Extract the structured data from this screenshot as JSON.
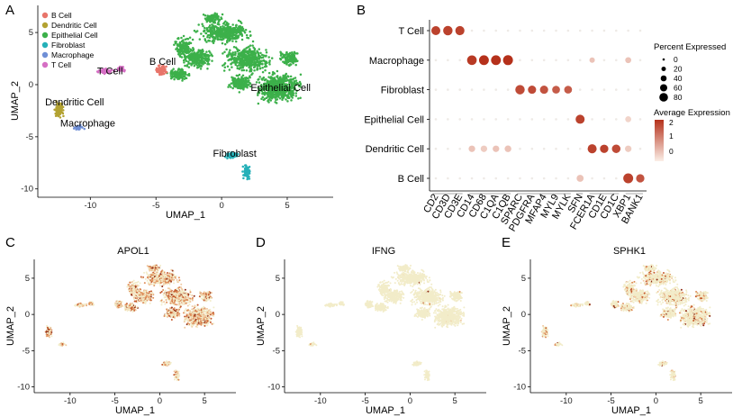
{
  "panels": {
    "A": {
      "letter": "A",
      "chart_id": "umap-clusters",
      "xlabel": "UMAP_1",
      "ylabel": "UMAP_2",
      "xlim": [
        -14,
        8.5
      ],
      "ylim": [
        -10.8,
        7.6
      ],
      "xticks": [
        -10,
        -5,
        0,
        5
      ],
      "yticks": [
        5,
        0,
        -5,
        -10
      ],
      "legend": [
        {
          "label": "B Cell",
          "color": "#e8756a"
        },
        {
          "label": "Dendritic Cell",
          "color": "#b3a232"
        },
        {
          "label": "Epithelial Cell",
          "color": "#3cb04a"
        },
        {
          "label": "Fibroblast",
          "color": "#25b0b8"
        },
        {
          "label": "Macrophage",
          "color": "#6f8fd6"
        },
        {
          "label": "T Cell",
          "color": "#d56fc4"
        }
      ],
      "cluster_labels": [
        {
          "text": "B Cell",
          "x": -4.5,
          "y": 1.9
        },
        {
          "text": "T Cell",
          "x": -8.5,
          "y": 1.0
        },
        {
          "text": "Epithelial Cell",
          "x": 4.5,
          "y": -0.6
        },
        {
          "text": "Dendritic Cell",
          "x": -11.2,
          "y": -2.0
        },
        {
          "text": "Macrophage",
          "x": -10.2,
          "y": -4.0
        },
        {
          "text": "Fibroblast",
          "x": 1.0,
          "y": -6.9
        }
      ]
    },
    "B": {
      "letter": "B",
      "chart_id": "dotplot",
      "cell_types": [
        "T Cell",
        "Macrophage",
        "Fibroblast",
        "Epithelial Cell",
        "Dendritic Cell",
        "B Cell"
      ],
      "genes": [
        "CD2",
        "CD3D",
        "CD3E",
        "CD14",
        "CD68",
        "C1QA",
        "C1QB",
        "SPARC",
        "PDGFRA",
        "MFAP4",
        "MYL9",
        "MYLK",
        "SFN",
        "FCER1A",
        "CD1E",
        "CD1C",
        "XBP1",
        "BANK1"
      ],
      "gene_groups": [
        3,
        4,
        5,
        1,
        3,
        2
      ],
      "size_legend_title": "Percent Expressed",
      "size_legend": [
        "0",
        "20",
        "40",
        "60",
        "80"
      ],
      "color_legend_title": "Average Expression",
      "color_legend_ticks": [
        "2",
        "1",
        "0"
      ],
      "color_low": "#fbeee6",
      "color_high": "#b5311b"
    },
    "C": {
      "letter": "C",
      "title": "APOL1",
      "chart_id": "feature-apol1",
      "xlabel": "UMAP_1",
      "ylabel": "UMAP_2",
      "xticks": [
        -10,
        -5,
        0,
        5
      ],
      "yticks": [
        5,
        0,
        -5,
        -10
      ]
    },
    "D": {
      "letter": "D",
      "title": "IFNG",
      "chart_id": "feature-ifng",
      "xlabel": "UMAP_1",
      "ylabel": "UMAP_2",
      "xticks": [
        -10,
        -5,
        0,
        5
      ],
      "yticks": [
        5,
        0,
        -5,
        -10
      ]
    },
    "E": {
      "letter": "E",
      "title": "SPHK1",
      "chart_id": "feature-sphk1",
      "xlabel": "UMAP_1",
      "ylabel": "UMAP_2",
      "xticks": [
        -10,
        -5,
        0,
        5
      ],
      "yticks": [
        5,
        0,
        -5,
        -10
      ]
    }
  },
  "chart_data": [
    {
      "type": "scatter",
      "title": "",
      "xlabel": "UMAP_1",
      "ylabel": "UMAP_2",
      "xlim": [
        -14,
        8.5
      ],
      "ylim": [
        -10.8,
        7.6
      ],
      "series": [
        {
          "name": "Epithelial Cell",
          "centers": [
            [
              1.5,
              5.5
            ],
            [
              0,
              4.5
            ],
            [
              -2,
              4
            ],
            [
              -3,
              2.8
            ],
            [
              3,
              3
            ],
            [
              2.5,
              0.5
            ],
            [
              4.5,
              0
            ],
            [
              5.5,
              -1.5
            ],
            [
              3,
              -2
            ],
            [
              -1,
              1.5
            ],
            [
              1,
              2.5
            ],
            [
              5,
              1.5
            ]
          ]
        },
        {
          "name": "B Cell",
          "centers": [
            [
              -4.6,
              1.5
            ],
            [
              -4.0,
              0.8
            ]
          ]
        },
        {
          "name": "T Cell",
          "centers": [
            [
              -9.0,
              1.3
            ],
            [
              -7.8,
              1.4
            ]
          ]
        },
        {
          "name": "Dendritic Cell",
          "centers": [
            [
              -12.3,
              -2.6
            ]
          ]
        },
        {
          "name": "Macrophage",
          "centers": [
            [
              -10.8,
              -4.0
            ]
          ]
        },
        {
          "name": "Fibroblast",
          "centers": [
            [
              0.7,
              -6.8
            ],
            [
              1.8,
              -8.4
            ]
          ]
        }
      ]
    },
    {
      "type": "dotplot",
      "title": "",
      "xlabel": "",
      "ylabel": "",
      "categories": [
        "CD2",
        "CD3D",
        "CD3E",
        "CD14",
        "CD68",
        "C1QA",
        "C1QB",
        "SPARC",
        "PDGFRA",
        "MFAP4",
        "MYL9",
        "MYLK",
        "SFN",
        "FCER1A",
        "CD1E",
        "CD1C",
        "XBP1",
        "BANK1"
      ],
      "series": [
        {
          "name": "T Cell",
          "pct": [
            72,
            80,
            74,
            0,
            0,
            0,
            0,
            0,
            0,
            0,
            0,
            0,
            0,
            0,
            0,
            0,
            0,
            0
          ],
          "avg": [
            2,
            2,
            2,
            0,
            0,
            0,
            0,
            0,
            0,
            0,
            0,
            0,
            0,
            0,
            0,
            0,
            0,
            0
          ]
        },
        {
          "name": "Macrophage",
          "pct": [
            0,
            0,
            0,
            85,
            90,
            90,
            92,
            0,
            0,
            0,
            0,
            0,
            0,
            15,
            0,
            0,
            22,
            0
          ],
          "avg": [
            0,
            0,
            0,
            2.1,
            2.2,
            2.2,
            2.2,
            0,
            0,
            0,
            0,
            0,
            0,
            0.5,
            0,
            0,
            0.5,
            0
          ]
        },
        {
          "name": "Fibroblast",
          "pct": [
            0,
            0,
            0,
            0,
            0,
            0,
            0,
            80,
            55,
            55,
            48,
            48,
            0,
            0,
            0,
            0,
            0,
            0
          ],
          "avg": [
            0,
            0,
            0,
            0,
            0,
            0,
            0,
            1.9,
            1.9,
            1.8,
            1.7,
            1.7,
            0,
            0,
            0,
            0,
            0,
            0
          ]
        },
        {
          "name": "Epithelial Cell",
          "pct": [
            0,
            0,
            0,
            0,
            0,
            0,
            0,
            0,
            0,
            0,
            0,
            0,
            72,
            0,
            0,
            0,
            22,
            0
          ],
          "avg": [
            0,
            0,
            0,
            0,
            0,
            0,
            0,
            0,
            0,
            0,
            0,
            0,
            2,
            0,
            0,
            0,
            0.3,
            0
          ]
        },
        {
          "name": "Dendritic Cell",
          "pct": [
            0,
            0,
            0,
            28,
            28,
            28,
            30,
            0,
            0,
            0,
            0,
            0,
            0,
            72,
            58,
            62,
            28,
            0
          ],
          "avg": [
            0,
            0,
            0,
            0.5,
            0.4,
            0.5,
            0.5,
            0,
            0,
            0,
            0,
            0,
            0,
            2,
            2,
            1.9,
            0.4,
            0
          ]
        },
        {
          "name": "B Cell",
          "pct": [
            0,
            0,
            0,
            0,
            0,
            0,
            0,
            0,
            0,
            0,
            0,
            0,
            35,
            0,
            0,
            0,
            92,
            58
          ],
          "avg": [
            0,
            0,
            0,
            0,
            0,
            0,
            0,
            0,
            0,
            0,
            0,
            0,
            0.5,
            0,
            0,
            0,
            2,
            1.8
          ]
        }
      ]
    },
    {
      "type": "scatter",
      "title": "APOL1",
      "xlabel": "UMAP_1",
      "ylabel": "UMAP_2",
      "xlim": [
        -14,
        8.5
      ],
      "ylim": [
        -10.8,
        7.6
      ],
      "expression_level": 0.55
    },
    {
      "type": "scatter",
      "title": "IFNG",
      "xlabel": "UMAP_1",
      "ylabel": "UMAP_2",
      "xlim": [
        -14,
        8.5
      ],
      "ylim": [
        -10.8,
        7.6
      ],
      "expression_level": 0.01
    },
    {
      "type": "scatter",
      "title": "SPHK1",
      "xlabel": "UMAP_1",
      "ylabel": "UMAP_2",
      "xlim": [
        -14,
        8.5
      ],
      "ylim": [
        -10.8,
        7.6
      ],
      "expression_level": 0.15
    }
  ]
}
